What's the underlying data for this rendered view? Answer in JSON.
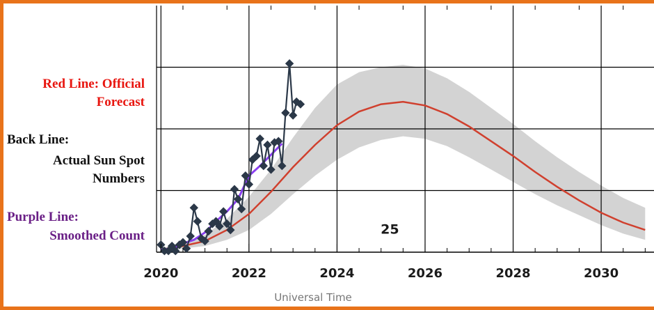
{
  "legend": {
    "red_line_1": "Red Line:  Official",
    "red_line_2": "Forecast",
    "black_line_1": "Back Line:",
    "black_line_2": "Actual Sun Spot",
    "black_line_3": "Numbers",
    "purple_line_1": "Purple Line:",
    "purple_line_2": "Smoothed Count"
  },
  "colors": {
    "frame": "#e8731a",
    "forecast": "#d0402e",
    "forecast_band": "#d3d3d3",
    "actual": "#2b3848",
    "smoothed": "#8a3ff0",
    "red_text": "#e8150f",
    "black_text": "#111111",
    "purple_text": "#6a1f86"
  },
  "chart_data": {
    "type": "line",
    "xlabel": "Universal Time",
    "ylabel": "",
    "xlim": [
      2019.9,
      2031.2
    ],
    "ylim": [
      0,
      200
    ],
    "x_ticks": [
      2020,
      2022,
      2024,
      2026,
      2028,
      2030
    ],
    "x_tick_labels": [
      "2020",
      "2022",
      "2024",
      "2026",
      "2028",
      "2030"
    ],
    "y_gridlines": [
      50,
      100,
      150
    ],
    "grid": true,
    "annotation": "25",
    "annotation_position": {
      "x": 2025.2,
      "y": 15
    },
    "series": [
      {
        "role": "actual",
        "x": [
          2020.0,
          2020.08,
          2020.17,
          2020.25,
          2020.33,
          2020.42,
          2020.5,
          2020.58,
          2020.67,
          2020.75,
          2020.83,
          2020.92,
          2021.0,
          2021.08,
          2021.17,
          2021.25,
          2021.33,
          2021.42,
          2021.5,
          2021.58,
          2021.67,
          2021.75,
          2021.83,
          2021.92,
          2022.0,
          2022.08,
          2022.17,
          2022.25,
          2022.33,
          2022.42,
          2022.5,
          2022.58,
          2022.67,
          2022.75,
          2022.83,
          2022.92,
          2023.0,
          2023.08,
          2023.17
        ],
        "y": [
          6,
          1,
          1,
          5,
          1,
          6,
          8,
          3,
          13,
          36,
          25,
          11,
          9,
          17,
          23,
          25,
          21,
          33,
          23,
          18,
          51,
          43,
          35,
          62,
          55,
          75,
          78,
          92,
          70,
          87,
          67,
          89,
          90,
          70,
          113,
          153,
          111,
          122,
          120
        ],
        "marker": "diamond"
      },
      {
        "role": "smoothed",
        "x": [
          2020.0,
          2020.25,
          2020.5,
          2020.75,
          2021.0,
          2021.25,
          2021.5,
          2021.75,
          2022.0,
          2022.25,
          2022.5,
          2022.75
        ],
        "y": [
          2,
          3,
          7,
          10,
          16,
          25,
          33,
          43,
          62,
          70,
          79,
          88
        ]
      },
      {
        "role": "forecast",
        "x": [
          2020.0,
          2020.5,
          2021.0,
          2021.5,
          2022.0,
          2022.5,
          2023.0,
          2023.5,
          2024.0,
          2024.5,
          2025.0,
          2025.5,
          2026.0,
          2026.5,
          2027.0,
          2027.5,
          2028.0,
          2028.5,
          2029.0,
          2029.5,
          2030.0,
          2030.5,
          2031.0
        ],
        "y": [
          2,
          5,
          9,
          18,
          31,
          49,
          69,
          87,
          103,
          114,
          120,
          122,
          119,
          112,
          102,
          90,
          78,
          65,
          53,
          42,
          32,
          24,
          18
        ],
        "band_upper": [
          3,
          8,
          14,
          27,
          45,
          67,
          93,
          117,
          136,
          146,
          150,
          152,
          149,
          141,
          130,
          117,
          104,
          90,
          77,
          65,
          54,
          44,
          36
        ],
        "band_lower": [
          1,
          3,
          5,
          10,
          18,
          31,
          47,
          62,
          75,
          85,
          91,
          94,
          92,
          86,
          77,
          67,
          57,
          47,
          38,
          30,
          22,
          15,
          10
        ]
      }
    ]
  }
}
